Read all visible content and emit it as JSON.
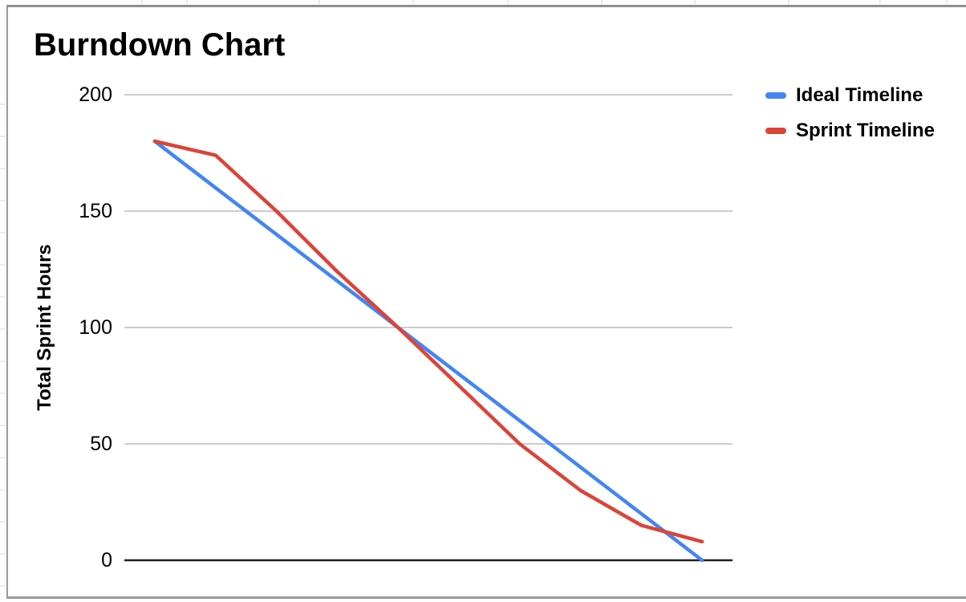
{
  "chart": {
    "title": "Burndown Chart",
    "y_axis_title": "Total Sprint Hours",
    "legend": {
      "position": "right",
      "items": [
        {
          "label": "Ideal Timeline",
          "color": "#4285f4"
        },
        {
          "label": "Sprint Timeline",
          "color": "#db4437"
        }
      ]
    }
  },
  "chart_data": {
    "type": "line",
    "title": "Burndown Chart",
    "xlabel": "",
    "ylabel": "Total Sprint Hours",
    "series": [
      {
        "name": "Ideal Timeline",
        "color": "#4285f4",
        "values": [
          180,
          160,
          140,
          120,
          100,
          80,
          60,
          40,
          20,
          0
        ]
      },
      {
        "name": "Sprint Timeline",
        "color": "#db4437",
        "values": [
          180,
          174,
          150,
          124,
          100,
          75,
          50,
          30,
          15,
          8
        ]
      }
    ],
    "yticks": [
      0,
      50,
      100,
      150,
      200
    ],
    "ylim": [
      0,
      200
    ],
    "grid": true,
    "legend_position": "right"
  },
  "colors": {
    "gridline": "#cccccc",
    "zero_axis": "#212121",
    "text": "#000000",
    "card_border": "#9a9a9a",
    "sheet_gridline": "#dcdcdc"
  }
}
